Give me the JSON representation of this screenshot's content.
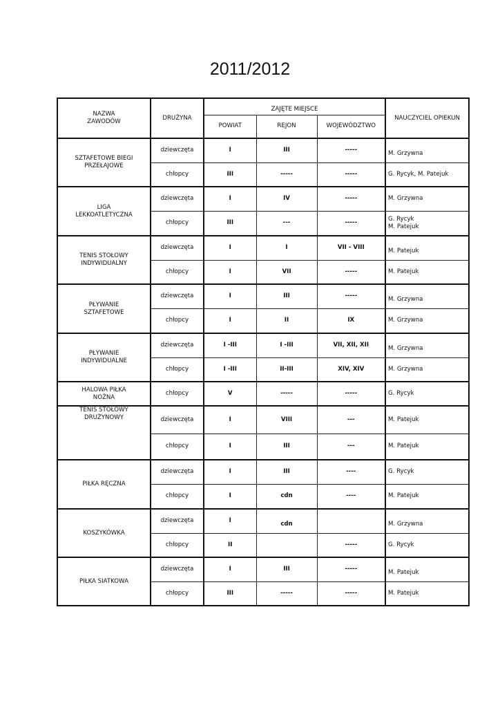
{
  "title": "2011/2012",
  "headers": {
    "name": "NAZWA\nZAWODÓW",
    "team": "DRUŻYNA",
    "places": "ZAJĘTE   MIEJSCE",
    "powiat": "POWIAT",
    "rejon": "REJON",
    "woj": "WOJEWÓDZTWO",
    "teacher": "NAUCZYCIEL OPIEKUN"
  },
  "groups": [
    {
      "name": "SZTAFETOWE BIEGI PRZEŁAJOWE",
      "rows": [
        {
          "team": "dziewczęta",
          "powiat": "I",
          "rejon": "III",
          "woj": "-----",
          "teacher": "M. Grzywna"
        },
        {
          "team": "chłopcy",
          "powiat": "III",
          "rejon": "-----",
          "woj": "-----",
          "teacher": "G. Rycyk, M. Patejuk"
        }
      ]
    },
    {
      "name": "LIGA LEKKOATLETYCZNA",
      "rows": [
        {
          "team": "dziewczęta",
          "powiat": "I",
          "rejon": "IV",
          "woj": "-----",
          "teacher": "M. Grzywna"
        },
        {
          "team": "chłopcy",
          "powiat": "III",
          "rejon": "---",
          "woj": "-----",
          "teacher": "G. Rycyk\nM. Patejuk"
        }
      ]
    },
    {
      "name": "TENIS STOŁOWY INDYWIDUALNY",
      "rows": [
        {
          "team": "dziewczęta",
          "powiat": "I",
          "rejon": "I",
          "woj": "VII - VIII",
          "teacher": "M. Patejuk"
        },
        {
          "team": "chłopcy",
          "powiat": "I",
          "rejon": "VII",
          "woj": "-----",
          "teacher": "M. Patejuk"
        }
      ]
    },
    {
      "name": "PŁYWANIE SZTAFETOWE",
      "rows": [
        {
          "team": "dziewczęta",
          "powiat": "I",
          "rejon": "III",
          "woj": "-----",
          "teacher": "M. Grzywna"
        },
        {
          "team": "chłopcy",
          "powiat": "I",
          "rejon": "II",
          "woj": "IX",
          "teacher": "M. Grzywna"
        }
      ]
    },
    {
      "name": "PŁYWANIE INDYWIDUALNE",
      "rows": [
        {
          "team": "dziewczęta",
          "powiat": "I -III",
          "rejon": "I -III",
          "woj": "VII, XII, XII",
          "teacher": "M. Grzywna"
        },
        {
          "team": "chłopcy",
          "powiat": "I -III",
          "rejon": "II-III",
          "woj": "XIV, XIV",
          "teacher": "M. Grzywna"
        }
      ]
    },
    {
      "name": "HALOWA PIŁKA NOŻNA",
      "rows": [
        {
          "team": "chłopcy",
          "powiat": "V",
          "rejon": "-----",
          "woj": "-----",
          "teacher": "G. Rycyk"
        }
      ]
    },
    {
      "name": "TENIS STOŁOWY DRUŻYNOWY",
      "rows": [
        {
          "team": "dziewczęta",
          "powiat": "I",
          "rejon": "VIII",
          "woj": "---",
          "teacher": "M. Patejuk"
        },
        {
          "team": "chłopcy",
          "powiat": "I",
          "rejon": "III",
          "woj": "---",
          "teacher": "M. Patejuk"
        }
      ]
    },
    {
      "name": "PIŁKA RĘCZNA",
      "rows": [
        {
          "team": "dziewczęta",
          "powiat": "I",
          "rejon": "III",
          "woj": "----",
          "teacher": "G. Rycyk"
        },
        {
          "team": "chłopcy",
          "powiat": "I",
          "rejon": "cdn",
          "woj": "----",
          "teacher": "M. Patejuk"
        }
      ]
    },
    {
      "name": "KOSZYKÓWKA",
      "rows": [
        {
          "team": "dziewczęta",
          "powiat": "I",
          "rejon": "cdn",
          "woj": "",
          "teacher": "M. Grzywna"
        },
        {
          "team": "chłopcy",
          "powiat": "II",
          "rejon": "",
          "woj": "-----",
          "teacher": "G. Rycyk"
        }
      ]
    },
    {
      "name": "PIŁKA SIATKOWA",
      "rows": [
        {
          "team": "dziewczęta",
          "powiat": "I",
          "rejon": "III",
          "woj": "-----",
          "teacher": "M. Patejuk"
        },
        {
          "team": "chłopcy",
          "powiat": "III",
          "rejon": "-----",
          "woj": "-----",
          "teacher": "M. Patejuk"
        }
      ]
    }
  ]
}
